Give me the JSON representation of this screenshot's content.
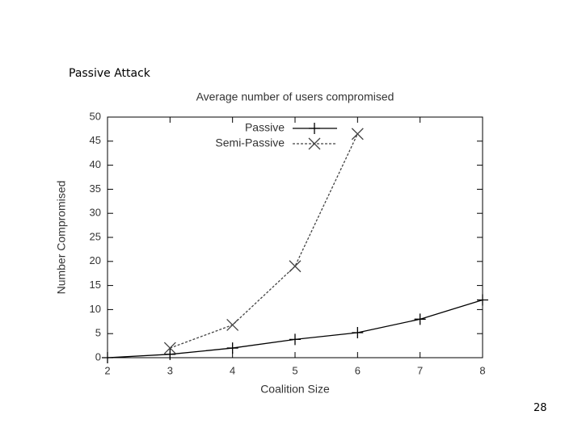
{
  "slide": {
    "title": "Passive Attack",
    "page_number": "28"
  },
  "chart_data": {
    "type": "line",
    "title": "Average number of users compromised",
    "xlabel": "Coalition Size",
    "ylabel": "Number Compromised",
    "x": [
      2,
      3,
      4,
      5,
      6,
      7,
      8
    ],
    "series": [
      {
        "name": "Passive",
        "color": "#000000",
        "dashed": false,
        "marker": "plus",
        "values": [
          0,
          0.7,
          2,
          3.8,
          5.2,
          8,
          12
        ]
      },
      {
        "name": "Semi-Passive",
        "color": "#444444",
        "dashed": true,
        "marker": "cross",
        "values": [
          null,
          2,
          6.8,
          19,
          46.5,
          null,
          null
        ]
      }
    ],
    "xlim": [
      2,
      8
    ],
    "xticks": [
      2,
      3,
      4,
      5,
      6,
      7,
      8
    ],
    "ylim": [
      0,
      50
    ],
    "yticks": [
      0,
      5,
      10,
      15,
      20,
      25,
      30,
      35,
      40,
      45,
      50
    ],
    "grid": false,
    "legend": "top-right"
  }
}
